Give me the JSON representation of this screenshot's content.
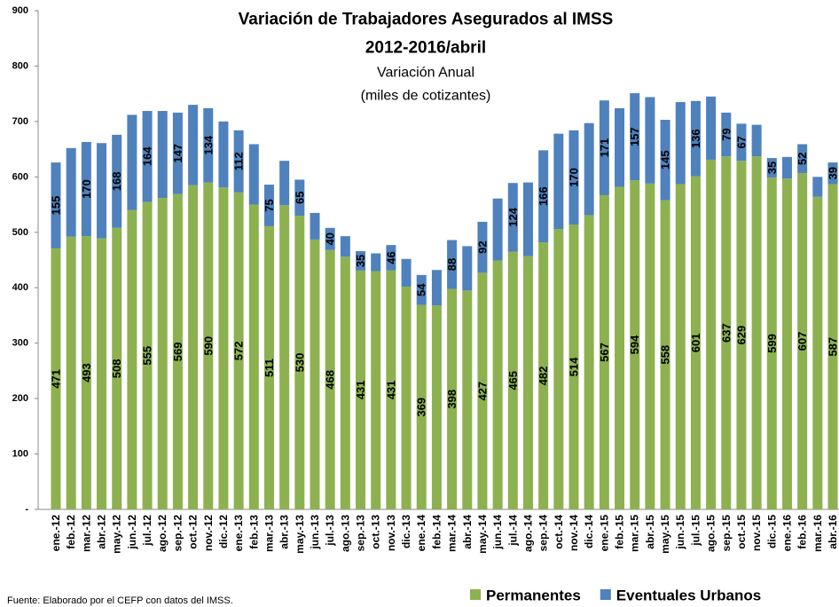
{
  "chart_data": {
    "type": "stacked_bar",
    "title": "Variación de Trabajadores Asegurados al IMSS",
    "subtitle": "2012-2016/abril",
    "subtitle2": "Variación Anual",
    "y_label": "(miles de cotizantes)",
    "source": "Fuente: Elaborado por el CEFP con datos del IMSS.",
    "categories": [
      "ene.-12",
      "feb.-12",
      "mar.-12",
      "abr.-12",
      "may.-12",
      "jun.-12",
      "jul.-12",
      "ago.-12",
      "sep.-12",
      "oct.-12",
      "nov.-12",
      "dic.-12",
      "ene.-13",
      "feb.-13",
      "mar.-13",
      "abr.-13",
      "may.-13",
      "jun.-13",
      "jul.-13",
      "ago.-13",
      "sep.-13",
      "oct.-13",
      "nov.-13",
      "dic.-13",
      "ene.-14",
      "feb.-14",
      "mar.-14",
      "abr.-14",
      "may.-14",
      "jun.-14",
      "jul.-14",
      "ago.-14",
      "sep.-14",
      "oct.-14",
      "nov.-14",
      "dic.-14",
      "ene.-15",
      "feb.-15",
      "mar.-15",
      "abr.-15",
      "may.-15",
      "jun.-15",
      "jul.-15",
      "ago.-15",
      "sep.-15",
      "oct.-15",
      "nov.-15",
      "dic.-15",
      "ene.-16",
      "feb.-16",
      "mar.-16",
      "abr.-16"
    ],
    "series": [
      {
        "name": "Permanentes",
        "color": "#8db150",
        "values": [
          471,
          492,
          493,
          489,
          508,
          540,
          555,
          562,
          569,
          585,
          590,
          581,
          572,
          550,
          511,
          549,
          530,
          487,
          468,
          456,
          431,
          430,
          431,
          402,
          369,
          368,
          398,
          395,
          427,
          449,
          465,
          457,
          482,
          506,
          514,
          531,
          567,
          582,
          594,
          588,
          558,
          587,
          601,
          631,
          637,
          629,
          637,
          599,
          597,
          607,
          564,
          587
        ],
        "value_labels": [
          "471",
          null,
          "493",
          null,
          "508",
          null,
          "555",
          null,
          "569",
          null,
          "590",
          null,
          "572",
          null,
          "511",
          null,
          "530",
          null,
          "468",
          null,
          "431",
          null,
          "431",
          null,
          "369",
          null,
          "398",
          null,
          "427",
          null,
          "465",
          null,
          "482",
          null,
          "514",
          null,
          "567",
          null,
          "594",
          null,
          "558",
          null,
          "601",
          null,
          "637",
          "629",
          null,
          "599",
          null,
          "607",
          null,
          "587"
        ]
      },
      {
        "name": "Eventuales Urbanos",
        "color": "#4f81bd",
        "values": [
          155,
          160,
          170,
          172,
          168,
          172,
          164,
          157,
          147,
          145,
          134,
          119,
          112,
          109,
          75,
          80,
          65,
          48,
          40,
          37,
          35,
          32,
          46,
          50,
          54,
          64,
          88,
          80,
          92,
          112,
          124,
          133,
          166,
          172,
          170,
          166,
          171,
          142,
          157,
          156,
          145,
          148,
          136,
          114,
          79,
          67,
          57,
          35,
          39,
          52,
          36,
          39
        ],
        "value_labels": [
          "155",
          null,
          "170",
          null,
          "168",
          null,
          "164",
          null,
          "147",
          null,
          "134",
          null,
          "112",
          null,
          "75",
          null,
          "65",
          null,
          "40",
          null,
          "35",
          null,
          "46",
          null,
          "54",
          null,
          "88",
          null,
          "92",
          null,
          "124",
          null,
          "166",
          null,
          "170",
          null,
          "171",
          null,
          "157",
          null,
          "145",
          null,
          "136",
          null,
          "79",
          "67",
          null,
          "35",
          null,
          "52",
          null,
          "39"
        ]
      }
    ],
    "ylim": [
      0,
      900
    ],
    "yticks": [
      {
        "value": 0,
        "label": "-"
      },
      100,
      200,
      300,
      400,
      500,
      600,
      700,
      800,
      900
    ],
    "legend": "bottom-right",
    "grid": false
  }
}
